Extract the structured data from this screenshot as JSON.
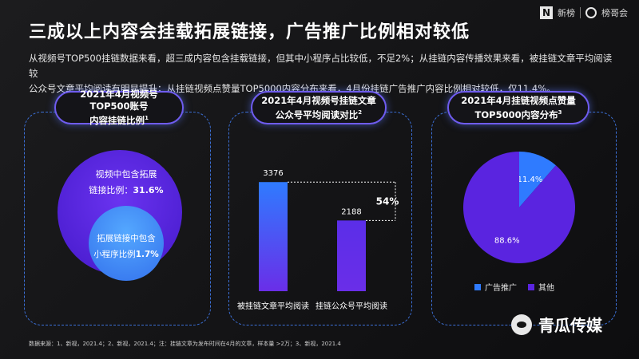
{
  "header": {
    "logo_text": "新榜",
    "logo_text2": "榜哥会",
    "title": "三成以上内容会挂载拓展链接，广告推广比例相对较低",
    "desc_line1": "从视频号TOP500挂链数据来看，超三成内容包含挂载链接，但其中小程序占比较低，不足2%；从挂链内容传播效果来看，被挂链文章平均阅读较",
    "desc_line2": "公众号文章平均阅读有明显提升；从挂链视频点赞量TOP5000内容分布来看，4月份挂链广告推广内容比例相对较低，仅11.4%。"
  },
  "panels": [
    {
      "title_line1": "2021年4月视频号TOP500账号",
      "title_line2": "内容挂链比例",
      "note": "1"
    },
    {
      "title_line1": "2021年4月视频号挂链文章",
      "title_line2": "公众号平均阅读对比",
      "note": "2"
    },
    {
      "title_line1": "2021年4月挂链视频点赞量",
      "title_line2": "TOP5000内容分布",
      "note": "3"
    }
  ],
  "chart_data": [
    {
      "type": "nested-circles",
      "circles": [
        {
          "label_line1": "视频中包含拓展",
          "label_line2_prefix": "链接比例：",
          "value_label": "31.6%",
          "value": 31.6,
          "color": "#5a24e0"
        },
        {
          "label_line1": "拓展链接中包含",
          "label_line2_prefix": "小程序比例",
          "value_label": "1.7%",
          "value": 1.7,
          "color": "#3d8dff"
        }
      ]
    },
    {
      "type": "bar",
      "categories": [
        "被挂链文章平均阅读",
        "挂链公众号平均阅读"
      ],
      "values": [
        3376,
        2188
      ],
      "ylim": [
        0,
        3900
      ],
      "annotation": "54%",
      "colors": [
        "#2f7bff",
        "#5b2ee8"
      ]
    },
    {
      "type": "pie",
      "labels": [
        "广告推广",
        "其他"
      ],
      "values": [
        11.4,
        88.6
      ],
      "value_labels": [
        "11.4%",
        "88.6%"
      ],
      "colors": [
        "#2f7bff",
        "#5a24e0"
      ],
      "legend": "bottom"
    }
  ],
  "footer": {
    "source": "数据来源：1、新视，2021.4；2、新视，2021.4；注：挂链文章为发布时间在4月的文章，样本量 >2万；3、新视，2021.4",
    "brand": "青瓜传媒"
  }
}
